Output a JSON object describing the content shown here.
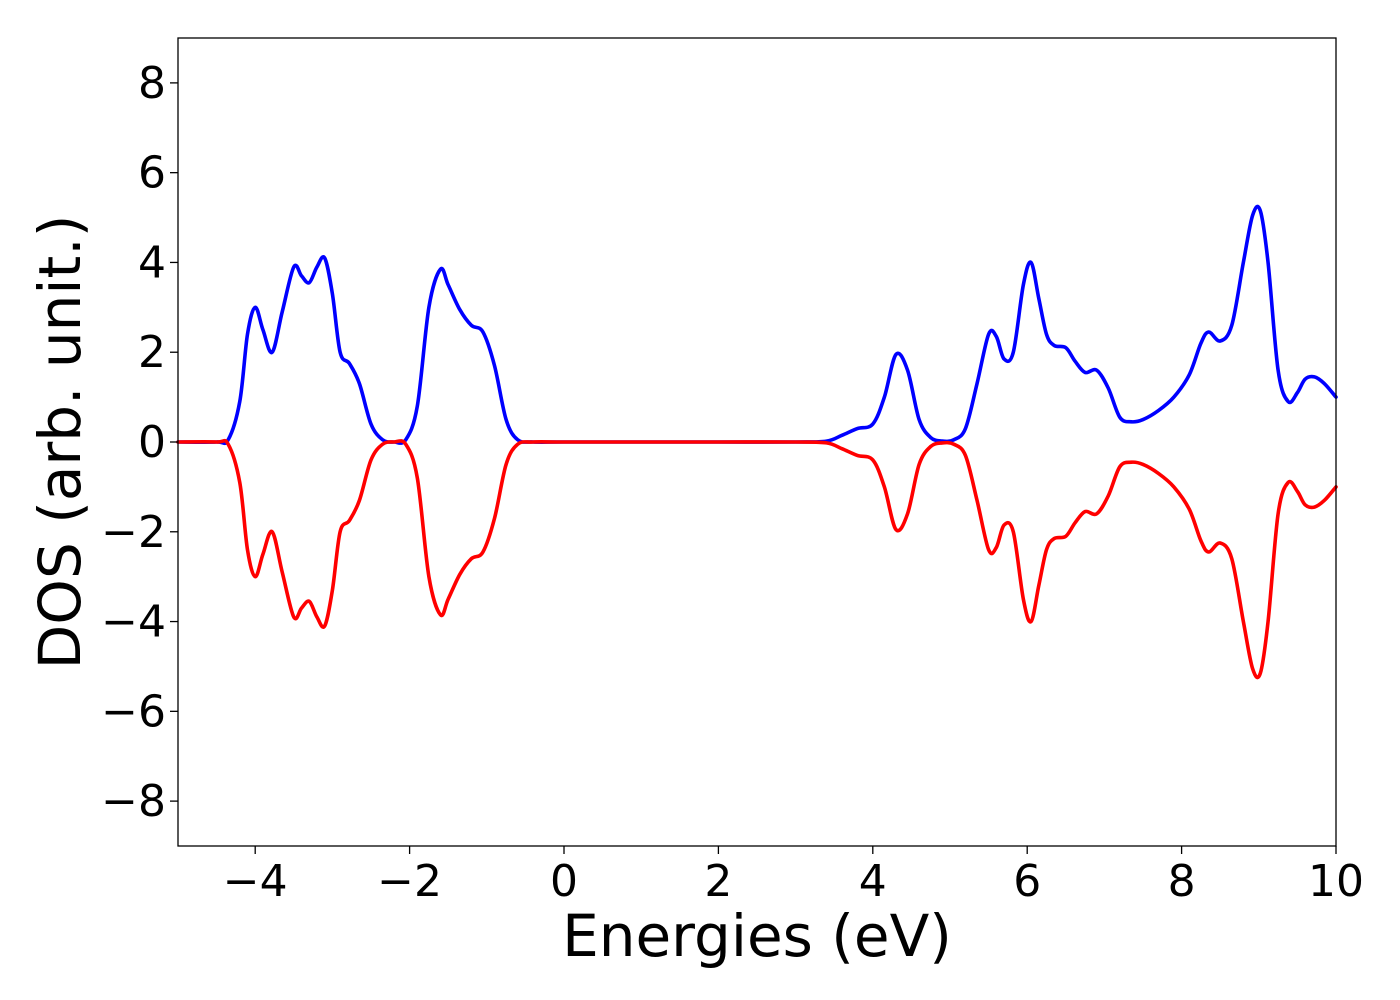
{
  "chart_data": {
    "type": "line",
    "title": "",
    "xlabel": "Energies (eV)",
    "ylabel": "DOS (arb. unit.)",
    "xlim": [
      -5,
      10
    ],
    "ylim": [
      -9,
      9
    ],
    "x_ticks": [
      -4,
      -2,
      0,
      2,
      4,
      6,
      8,
      10
    ],
    "x_tick_labels": [
      "−4",
      "−2",
      "0",
      "2",
      "4",
      "6",
      "8",
      "10"
    ],
    "y_ticks": [
      8,
      6,
      4,
      2,
      0,
      -2,
      -4,
      -6,
      -8
    ],
    "y_tick_labels": [
      "8",
      "6",
      "4",
      "2",
      "0",
      "−2",
      "−4",
      "−6",
      "−8"
    ],
    "grid": false,
    "legend": "none",
    "series": [
      {
        "color": "#0000ff",
        "x": [
          -5.0,
          -4.5,
          -4.35,
          -4.2,
          -4.1,
          -4.0,
          -3.9,
          -3.78,
          -3.65,
          -3.5,
          -3.4,
          -3.3,
          -3.2,
          -3.1,
          -3.0,
          -2.9,
          -2.78,
          -2.65,
          -2.5,
          -2.35,
          -2.2,
          -2.05,
          -1.9,
          -1.75,
          -1.6,
          -1.5,
          -1.35,
          -1.2,
          -1.05,
          -0.9,
          -0.75,
          -0.6,
          -0.4,
          0.0,
          1.0,
          2.0,
          3.0,
          3.4,
          3.6,
          3.8,
          4.0,
          4.15,
          4.3,
          4.45,
          4.6,
          4.75,
          4.9,
          5.05,
          5.2,
          5.35,
          5.5,
          5.6,
          5.7,
          5.82,
          5.95,
          6.05,
          6.15,
          6.25,
          6.35,
          6.5,
          6.62,
          6.75,
          6.9,
          7.05,
          7.2,
          7.35,
          7.5,
          7.7,
          7.9,
          8.1,
          8.25,
          8.35,
          8.5,
          8.65,
          8.8,
          8.92,
          9.02,
          9.12,
          9.25,
          9.38,
          9.5,
          9.6,
          9.72,
          9.85,
          10.0
        ],
        "y": [
          0.0,
          0.0,
          0.05,
          0.9,
          2.4,
          3.0,
          2.5,
          2.0,
          2.9,
          3.9,
          3.7,
          3.55,
          3.9,
          4.1,
          3.3,
          2.0,
          1.75,
          1.3,
          0.4,
          0.05,
          0.0,
          0.05,
          0.8,
          3.0,
          3.85,
          3.5,
          2.95,
          2.6,
          2.45,
          1.7,
          0.5,
          0.05,
          0.0,
          0.0,
          0.0,
          0.0,
          0.0,
          0.02,
          0.15,
          0.3,
          0.4,
          1.0,
          1.95,
          1.6,
          0.5,
          0.1,
          0.02,
          0.05,
          0.3,
          1.3,
          2.4,
          2.35,
          1.85,
          2.0,
          3.5,
          4.0,
          3.2,
          2.4,
          2.15,
          2.1,
          1.8,
          1.55,
          1.6,
          1.2,
          0.55,
          0.45,
          0.5,
          0.7,
          1.0,
          1.5,
          2.2,
          2.45,
          2.25,
          2.6,
          4.0,
          5.05,
          5.15,
          4.0,
          1.6,
          0.9,
          1.1,
          1.4,
          1.45,
          1.3,
          1.0
        ]
      },
      {
        "color": "#ff0000",
        "x": [
          -5.0,
          -4.5,
          -4.35,
          -4.2,
          -4.1,
          -4.0,
          -3.9,
          -3.78,
          -3.65,
          -3.5,
          -3.4,
          -3.3,
          -3.2,
          -3.1,
          -3.0,
          -2.9,
          -2.78,
          -2.65,
          -2.5,
          -2.35,
          -2.2,
          -2.05,
          -1.9,
          -1.75,
          -1.6,
          -1.5,
          -1.35,
          -1.2,
          -1.05,
          -0.9,
          -0.75,
          -0.6,
          -0.4,
          0.0,
          1.0,
          2.0,
          3.0,
          3.4,
          3.6,
          3.8,
          4.0,
          4.15,
          4.3,
          4.45,
          4.6,
          4.75,
          4.9,
          5.05,
          5.2,
          5.35,
          5.5,
          5.6,
          5.7,
          5.82,
          5.95,
          6.05,
          6.15,
          6.25,
          6.35,
          6.5,
          6.62,
          6.75,
          6.9,
          7.05,
          7.2,
          7.35,
          7.5,
          7.7,
          7.9,
          8.1,
          8.25,
          8.35,
          8.5,
          8.65,
          8.8,
          8.92,
          9.02,
          9.12,
          9.25,
          9.38,
          9.5,
          9.6,
          9.72,
          9.85,
          10.0
        ],
        "y": [
          0.0,
          0.0,
          -0.05,
          -0.9,
          -2.4,
          -3.0,
          -2.5,
          -2.0,
          -2.9,
          -3.9,
          -3.7,
          -3.55,
          -3.9,
          -4.1,
          -3.3,
          -2.0,
          -1.75,
          -1.3,
          -0.4,
          -0.05,
          0.0,
          -0.05,
          -0.8,
          -3.0,
          -3.85,
          -3.5,
          -2.95,
          -2.6,
          -2.45,
          -1.7,
          -0.5,
          -0.05,
          0.0,
          0.0,
          0.0,
          0.0,
          0.0,
          -0.02,
          -0.15,
          -0.3,
          -0.4,
          -1.0,
          -1.95,
          -1.6,
          -0.5,
          -0.1,
          -0.02,
          -0.05,
          -0.3,
          -1.3,
          -2.4,
          -2.35,
          -1.85,
          -2.0,
          -3.5,
          -4.0,
          -3.2,
          -2.4,
          -2.15,
          -2.1,
          -1.8,
          -1.55,
          -1.6,
          -1.2,
          -0.55,
          -0.45,
          -0.5,
          -0.7,
          -1.0,
          -1.5,
          -2.2,
          -2.45,
          -2.25,
          -2.6,
          -4.0,
          -5.05,
          -5.15,
          -4.0,
          -1.6,
          -0.9,
          -1.1,
          -1.4,
          -1.45,
          -1.3,
          -1.0
        ]
      }
    ]
  }
}
